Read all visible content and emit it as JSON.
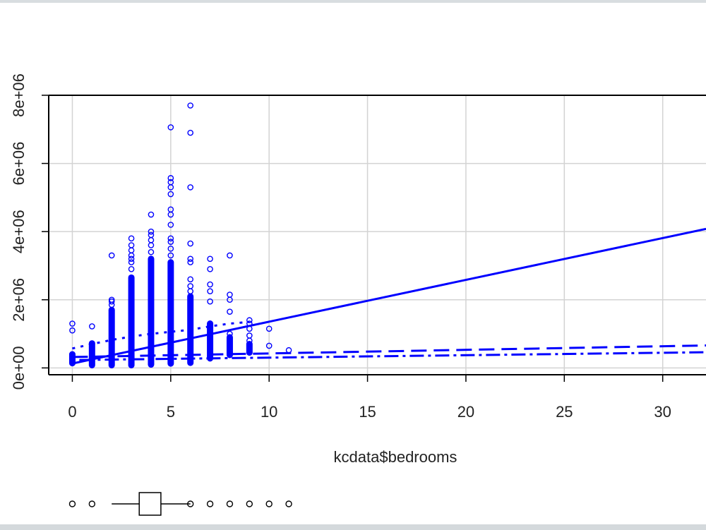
{
  "chart_data": {
    "type": "scatter",
    "xlabel": "kcdata$bedrooms",
    "ylabel": "",
    "title": "",
    "xlim": [
      -1.2,
      32.2
    ],
    "ylim": [
      -200000,
      8000000
    ],
    "x_ticks": [
      0,
      5,
      10,
      15,
      20,
      25,
      30
    ],
    "x_tick_labels": [
      "0",
      "5",
      "10",
      "15",
      "20",
      "25",
      "30"
    ],
    "y_ticks": [
      0,
      2000000,
      4000000,
      6000000,
      8000000
    ],
    "y_tick_labels": [
      "0e+00",
      "2e+06",
      "4e+06",
      "6e+06",
      "8e+06"
    ],
    "grid": true,
    "point_color": "#0000ff",
    "line_color": "#0000ff",
    "columns": [
      {
        "x": 0,
        "min": 140000,
        "max": 400000,
        "outliers": [
          1100000,
          1300000
        ]
      },
      {
        "x": 1,
        "min": 80000,
        "max": 720000,
        "outliers": [
          1220000
        ]
      },
      {
        "x": 2,
        "min": 80000,
        "max": 1700000,
        "outliers": [
          1850000,
          1950000,
          2000000,
          3300000
        ]
      },
      {
        "x": 3,
        "min": 80000,
        "max": 2650000,
        "outliers": [
          2900000,
          3100000,
          3200000,
          3300000,
          3450000,
          3600000,
          3800000
        ]
      },
      {
        "x": 4,
        "min": 100000,
        "max": 3200000,
        "outliers": [
          3400000,
          3600000,
          3750000,
          3900000,
          4000000,
          4500000
        ]
      },
      {
        "x": 5,
        "min": 130000,
        "max": 3100000,
        "outliers": [
          3300000,
          3500000,
          3700000,
          3800000,
          4200000,
          4500000,
          4650000,
          5100000,
          5300000,
          5450000,
          5570000,
          7060000
        ]
      },
      {
        "x": 6,
        "min": 150000,
        "max": 2100000,
        "outliers": [
          2250000,
          2400000,
          2600000,
          3100000,
          3200000,
          3650000,
          5300000,
          6900000,
          7700000
        ]
      },
      {
        "x": 7,
        "min": 280000,
        "max": 1300000,
        "outliers": [
          1950000,
          2250000,
          2450000,
          2900000,
          3200000
        ]
      },
      {
        "x": 8,
        "min": 380000,
        "max": 900000,
        "outliers": [
          1000000,
          1650000,
          2000000,
          2150000,
          3300000
        ]
      },
      {
        "x": 9,
        "min": 450000,
        "max": 700000,
        "outliers": [
          800000,
          950000,
          1150000,
          1300000,
          1400000
        ]
      },
      {
        "x": 10,
        "min": 650000,
        "max": 650000,
        "outliers": [
          1150000
        ]
      },
      {
        "x": 11,
        "min": 520000,
        "max": 520000,
        "outliers": []
      }
    ],
    "lines": [
      {
        "name": "",
        "style": "solid",
        "points": [
          [
            0,
            130000
          ],
          [
            32.2,
            4080000
          ]
        ]
      },
      {
        "name": "",
        "style": "dashed",
        "points": [
          [
            0,
            320000
          ],
          [
            32.2,
            660000
          ]
        ]
      },
      {
        "name": "",
        "style": "dotdash",
        "points": [
          [
            0,
            230000
          ],
          [
            32.2,
            460000
          ]
        ]
      },
      {
        "name": "",
        "style": "dotted",
        "points": [
          [
            0,
            570000
          ],
          [
            1,
            700000
          ],
          [
            2,
            820000
          ],
          [
            3,
            920000
          ],
          [
            4,
            1000000
          ],
          [
            5,
            1060000
          ],
          [
            6,
            1120000
          ],
          [
            7,
            1220000
          ],
          [
            8,
            1300000
          ],
          [
            9,
            1350000
          ]
        ]
      }
    ],
    "boxplot": {
      "orientation": "horizontal",
      "q1": 3.4,
      "q3": 4.5,
      "whisker_low": 2,
      "whisker_high": 6,
      "outliers": [
        0,
        1,
        6,
        7,
        8,
        9,
        10,
        11
      ]
    }
  }
}
